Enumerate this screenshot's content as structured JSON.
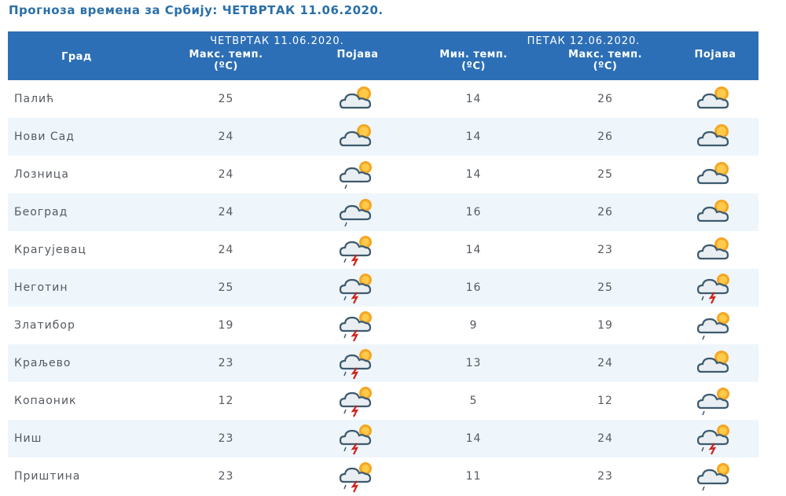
{
  "title": "Прогноза времена за Србију: ЧЕТВРТАК  11.06.2020.",
  "header": {
    "city": "Град",
    "day1": "ЧЕТВРТАК  11.06.2020.",
    "day2": "ПЕТАК  12.06.2020.",
    "max_temp": "Макс. темп.",
    "min_temp": "Мин. темп.",
    "unit": "(ºC)",
    "phenomenon": "Појава"
  },
  "colors": {
    "header_bg": "#2c6fb6",
    "title": "#2a6fa8",
    "stripe": "#eef6fb"
  },
  "rows": [
    {
      "city": "Палић",
      "d1_max": "25",
      "d1_icon": "partly-cloudy-icon",
      "d2_min": "14",
      "d2_max": "26",
      "d2_icon": "partly-cloudy-icon"
    },
    {
      "city": "Нови Сад",
      "d1_max": "24",
      "d1_icon": "partly-cloudy-icon",
      "d2_min": "14",
      "d2_max": "26",
      "d2_icon": "partly-cloudy-icon"
    },
    {
      "city": "Лозница",
      "d1_max": "24",
      "d1_icon": "cloudy-light-rain-icon",
      "d2_min": "14",
      "d2_max": "25",
      "d2_icon": "partly-cloudy-icon"
    },
    {
      "city": "Београд",
      "d1_max": "24",
      "d1_icon": "cloudy-light-rain-icon",
      "d2_min": "16",
      "d2_max": "26",
      "d2_icon": "partly-cloudy-icon"
    },
    {
      "city": "Крагујевац",
      "d1_max": "24",
      "d1_icon": "thunderstorm-icon",
      "d2_min": "14",
      "d2_max": "23",
      "d2_icon": "partly-cloudy-icon"
    },
    {
      "city": "Неготин",
      "d1_max": "25",
      "d1_icon": "thunderstorm-icon",
      "d2_min": "16",
      "d2_max": "25",
      "d2_icon": "thunderstorm-icon"
    },
    {
      "city": "Златибор",
      "d1_max": "19",
      "d1_icon": "thunderstorm-icon",
      "d2_min": "9",
      "d2_max": "19",
      "d2_icon": "cloudy-light-rain-icon"
    },
    {
      "city": "Краљево",
      "d1_max": "23",
      "d1_icon": "thunderstorm-icon",
      "d2_min": "13",
      "d2_max": "24",
      "d2_icon": "partly-cloudy-icon"
    },
    {
      "city": "Копаоник",
      "d1_max": "12",
      "d1_icon": "thunderstorm-icon",
      "d2_min": "5",
      "d2_max": "12",
      "d2_icon": "cloudy-light-rain-icon"
    },
    {
      "city": "Ниш",
      "d1_max": "23",
      "d1_icon": "thunderstorm-icon",
      "d2_min": "14",
      "d2_max": "24",
      "d2_icon": "thunderstorm-icon"
    },
    {
      "city": "Приштина",
      "d1_max": "23",
      "d1_icon": "thunderstorm-icon",
      "d2_min": "11",
      "d2_max": "23",
      "d2_icon": "cloudy-light-rain-icon"
    }
  ]
}
